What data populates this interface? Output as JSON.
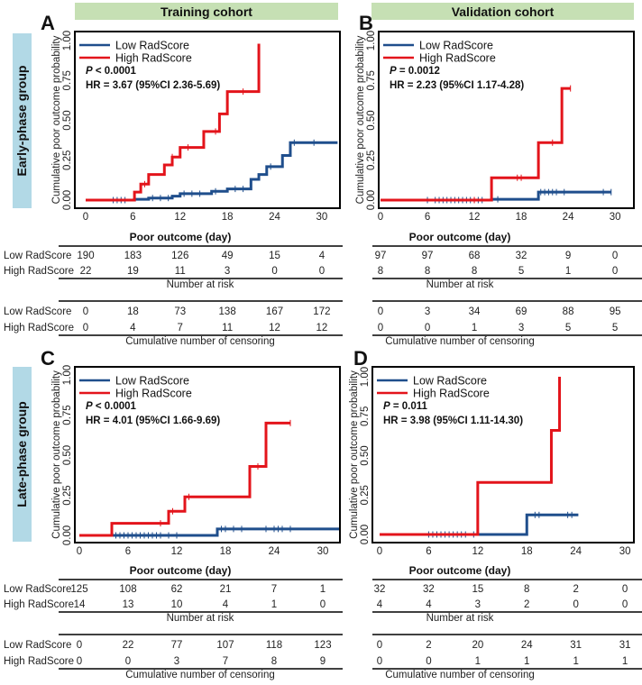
{
  "colors": {
    "low": "#1f4e8c",
    "high": "#e3141b",
    "cohort_bar": "#c6e0b4",
    "group_bar": "#b2d9e6"
  },
  "cohorts": [
    "Training cohort",
    "Validation cohort"
  ],
  "groups": [
    "Early-phase group",
    "Late-phase group"
  ],
  "row_labels": [
    "Low RadScore",
    "High RadScore"
  ],
  "chart_data": [
    {
      "panel": "A",
      "type": "line",
      "legend": [
        "Low RadScore",
        "High RadScore"
      ],
      "p_label": "P",
      "p_text": " < 0.0001",
      "hr_text": "HR = 3.67 (95%CI 2.36-5.69)",
      "xlabel": "Poor outcome (day)",
      "ylabel": "Cumulative poor outcome probability",
      "xticks": [
        "0",
        "6",
        "12",
        "18",
        "24",
        "30"
      ],
      "yticks": [
        "0.00",
        "0.25",
        "0.50",
        "0.75",
        "1.00"
      ],
      "ylim": [
        0,
        1
      ],
      "series": [
        {
          "name": "Low RadScore",
          "steps": [
            [
              0,
              0
            ],
            [
              6.2,
              0.005
            ],
            [
              8,
              0.013
            ],
            [
              11,
              0.025
            ],
            [
              12,
              0.04
            ],
            [
              16,
              0.055
            ],
            [
              18,
              0.07
            ],
            [
              21,
              0.13
            ],
            [
              22,
              0.16
            ],
            [
              23,
              0.21
            ],
            [
              25,
              0.28
            ],
            [
              26,
              0.36
            ]
          ],
          "end": 32,
          "censor": [
            3.5,
            4,
            4.5,
            5,
            8.5,
            9.5,
            10.5,
            12.5,
            13.5,
            14.5,
            16.5,
            19,
            20,
            23.5,
            26.5,
            29
          ]
        },
        {
          "name": "High RadScore",
          "steps": [
            [
              0,
              0
            ],
            [
              6.2,
              0.05
            ],
            [
              7,
              0.1
            ],
            [
              8,
              0.16
            ],
            [
              10,
              0.22
            ],
            [
              11,
              0.27
            ],
            [
              12,
              0.33
            ],
            [
              15,
              0.43
            ],
            [
              17,
              0.54
            ],
            [
              18,
              0.68
            ],
            [
              22,
              0.98
            ]
          ],
          "end": 22,
          "censor": [
            7.5,
            11,
            13,
            16.5,
            20
          ]
        }
      ],
      "risk": {
        "title": "Number at risk",
        "low": [
          "190",
          "183",
          "126",
          "49",
          "15",
          "4"
        ],
        "high": [
          "22",
          "19",
          "11",
          "3",
          "0",
          "0"
        ]
      },
      "censoring": {
        "title": "Cumulative number of censoring",
        "low": [
          "0",
          "18",
          "73",
          "138",
          "167",
          "172"
        ],
        "high": [
          "0",
          "4",
          "7",
          "11",
          "12",
          "12"
        ]
      }
    },
    {
      "panel": "B",
      "type": "line",
      "legend": [
        "Low RadScore",
        "High RadScore"
      ],
      "p_label": "P",
      "p_text": " = 0.0012",
      "hr_text": "HR = 2.23 (95%CI 1.17-4.28)",
      "xlabel": "Poor outcome (day)",
      "ylabel": "Cumulative poor outcome probability",
      "xticks": [
        "0",
        "6",
        "12",
        "18",
        "24",
        "30"
      ],
      "yticks": [
        "0.00",
        "0.25",
        "0.50",
        "0.75",
        "1.00"
      ],
      "ylim": [
        0,
        1
      ],
      "series": [
        {
          "name": "Low RadScore",
          "steps": [
            [
              0,
              0
            ],
            [
              14.2,
              0.005
            ],
            [
              20.2,
              0.05
            ]
          ],
          "end": 29.5,
          "censor": [
            6,
            7,
            7.5,
            8,
            8.5,
            9,
            9.5,
            10,
            10.5,
            11,
            11.5,
            12,
            12.5,
            13,
            15,
            20.5,
            21,
            21.5,
            22,
            22.5,
            23.5,
            28.5,
            29.5
          ]
        },
        {
          "name": "High RadScore",
          "steps": [
            [
              0,
              0
            ],
            [
              14.2,
              0.14
            ],
            [
              20.2,
              0.36
            ],
            [
              23.2,
              0.7
            ]
          ],
          "end": 24.3,
          "censor": [
            12,
            17.5,
            18,
            22,
            24.3
          ]
        }
      ],
      "risk": {
        "title": "Number at risk",
        "low": [
          "97",
          "97",
          "68",
          "32",
          "9",
          "0"
        ],
        "high": [
          "8",
          "8",
          "8",
          "5",
          "1",
          "0"
        ]
      },
      "censoring": {
        "title": "Cumulative number of censoring",
        "low": [
          "0",
          "3",
          "34",
          "69",
          "88",
          "95"
        ],
        "high": [
          "0",
          "0",
          "1",
          "3",
          "5",
          "5"
        ]
      }
    },
    {
      "panel": "C",
      "type": "line",
      "legend": [
        "Low RadScore",
        "High RadScore"
      ],
      "p_label": "P",
      "p_text": " < 0.0001",
      "hr_text": "HR = 4.01 (95%CI 1.66-9.69)",
      "xlabel": "Poor outcome (day)",
      "ylabel": "Cumulative poor outcome probability",
      "xticks": [
        "0",
        "6",
        "12",
        "18",
        "24",
        "30"
      ],
      "yticks": [
        "0.00",
        "0.25",
        "0.50",
        "0.75",
        "1.00"
      ],
      "ylim": [
        0,
        1
      ],
      "series": [
        {
          "name": "Low RadScore",
          "steps": [
            [
              0,
              0
            ],
            [
              17,
              0.04
            ]
          ],
          "end": 32,
          "censor": [
            4.5,
            5,
            5.5,
            6,
            6.5,
            7,
            7.5,
            8,
            8.5,
            9,
            9.5,
            10,
            11,
            12,
            17.5,
            18,
            19,
            20,
            23,
            24,
            24.5,
            25,
            26
          ]
        },
        {
          "name": "High RadScore",
          "steps": [
            [
              0,
              0
            ],
            [
              4,
              0.075
            ],
            [
              11,
              0.15
            ],
            [
              13,
              0.24
            ],
            [
              21,
              0.43
            ],
            [
              23,
              0.7
            ]
          ],
          "end": 26,
          "censor": [
            10,
            11.5,
            13.5,
            22,
            26
          ]
        }
      ],
      "risk": {
        "title": "Number at risk",
        "low": [
          "125",
          "108",
          "62",
          "21",
          "7",
          "1"
        ],
        "high": [
          "14",
          "13",
          "10",
          "4",
          "1",
          "0"
        ]
      },
      "censoring": {
        "title": "Cumulative number of censoring",
        "low": [
          "0",
          "22",
          "77",
          "107",
          "118",
          "123"
        ],
        "high": [
          "0",
          "0",
          "3",
          "7",
          "8",
          "9"
        ]
      }
    },
    {
      "panel": "D",
      "type": "line",
      "legend": [
        "Low RadScore",
        "High RadScore"
      ],
      "p_label": "P",
      "p_text": " = 0.011",
      "hr_text": "HR = 3.98 (95%CI 1.11-14.30)",
      "xlabel": "Poor outcome (day)",
      "ylabel": "Cumulative poor outcome probability",
      "xticks": [
        "0",
        "6",
        "12",
        "18",
        "24",
        "30"
      ],
      "yticks": [
        "0.00",
        "0.25",
        "0.50",
        "0.75",
        "1.00"
      ],
      "ylim": [
        0,
        1
      ],
      "series": [
        {
          "name": "Low RadScore",
          "steps": [
            [
              0,
              0
            ],
            [
              18,
              0.124
            ]
          ],
          "end": 24.3,
          "censor": [
            6,
            6.5,
            7,
            7.5,
            8,
            8.5,
            9,
            9.5,
            10,
            10.5,
            11.5,
            19,
            19.5,
            23,
            23.5
          ]
        },
        {
          "name": "High RadScore",
          "steps": [
            [
              0,
              0
            ],
            [
              12,
              0.33
            ],
            [
              21,
              0.66
            ],
            [
              22,
              1.0
            ]
          ],
          "end": 22,
          "censor": []
        }
      ],
      "risk": {
        "title": "Number at risk",
        "low": [
          "32",
          "32",
          "15",
          "8",
          "2",
          "0"
        ],
        "high": [
          "4",
          "4",
          "3",
          "2",
          "0",
          "0"
        ]
      },
      "censoring": {
        "title": "Cumulative number of censoring",
        "low": [
          "0",
          "2",
          "20",
          "24",
          "31",
          "31"
        ],
        "high": [
          "0",
          "0",
          "1",
          "1",
          "1",
          "1"
        ]
      }
    }
  ]
}
